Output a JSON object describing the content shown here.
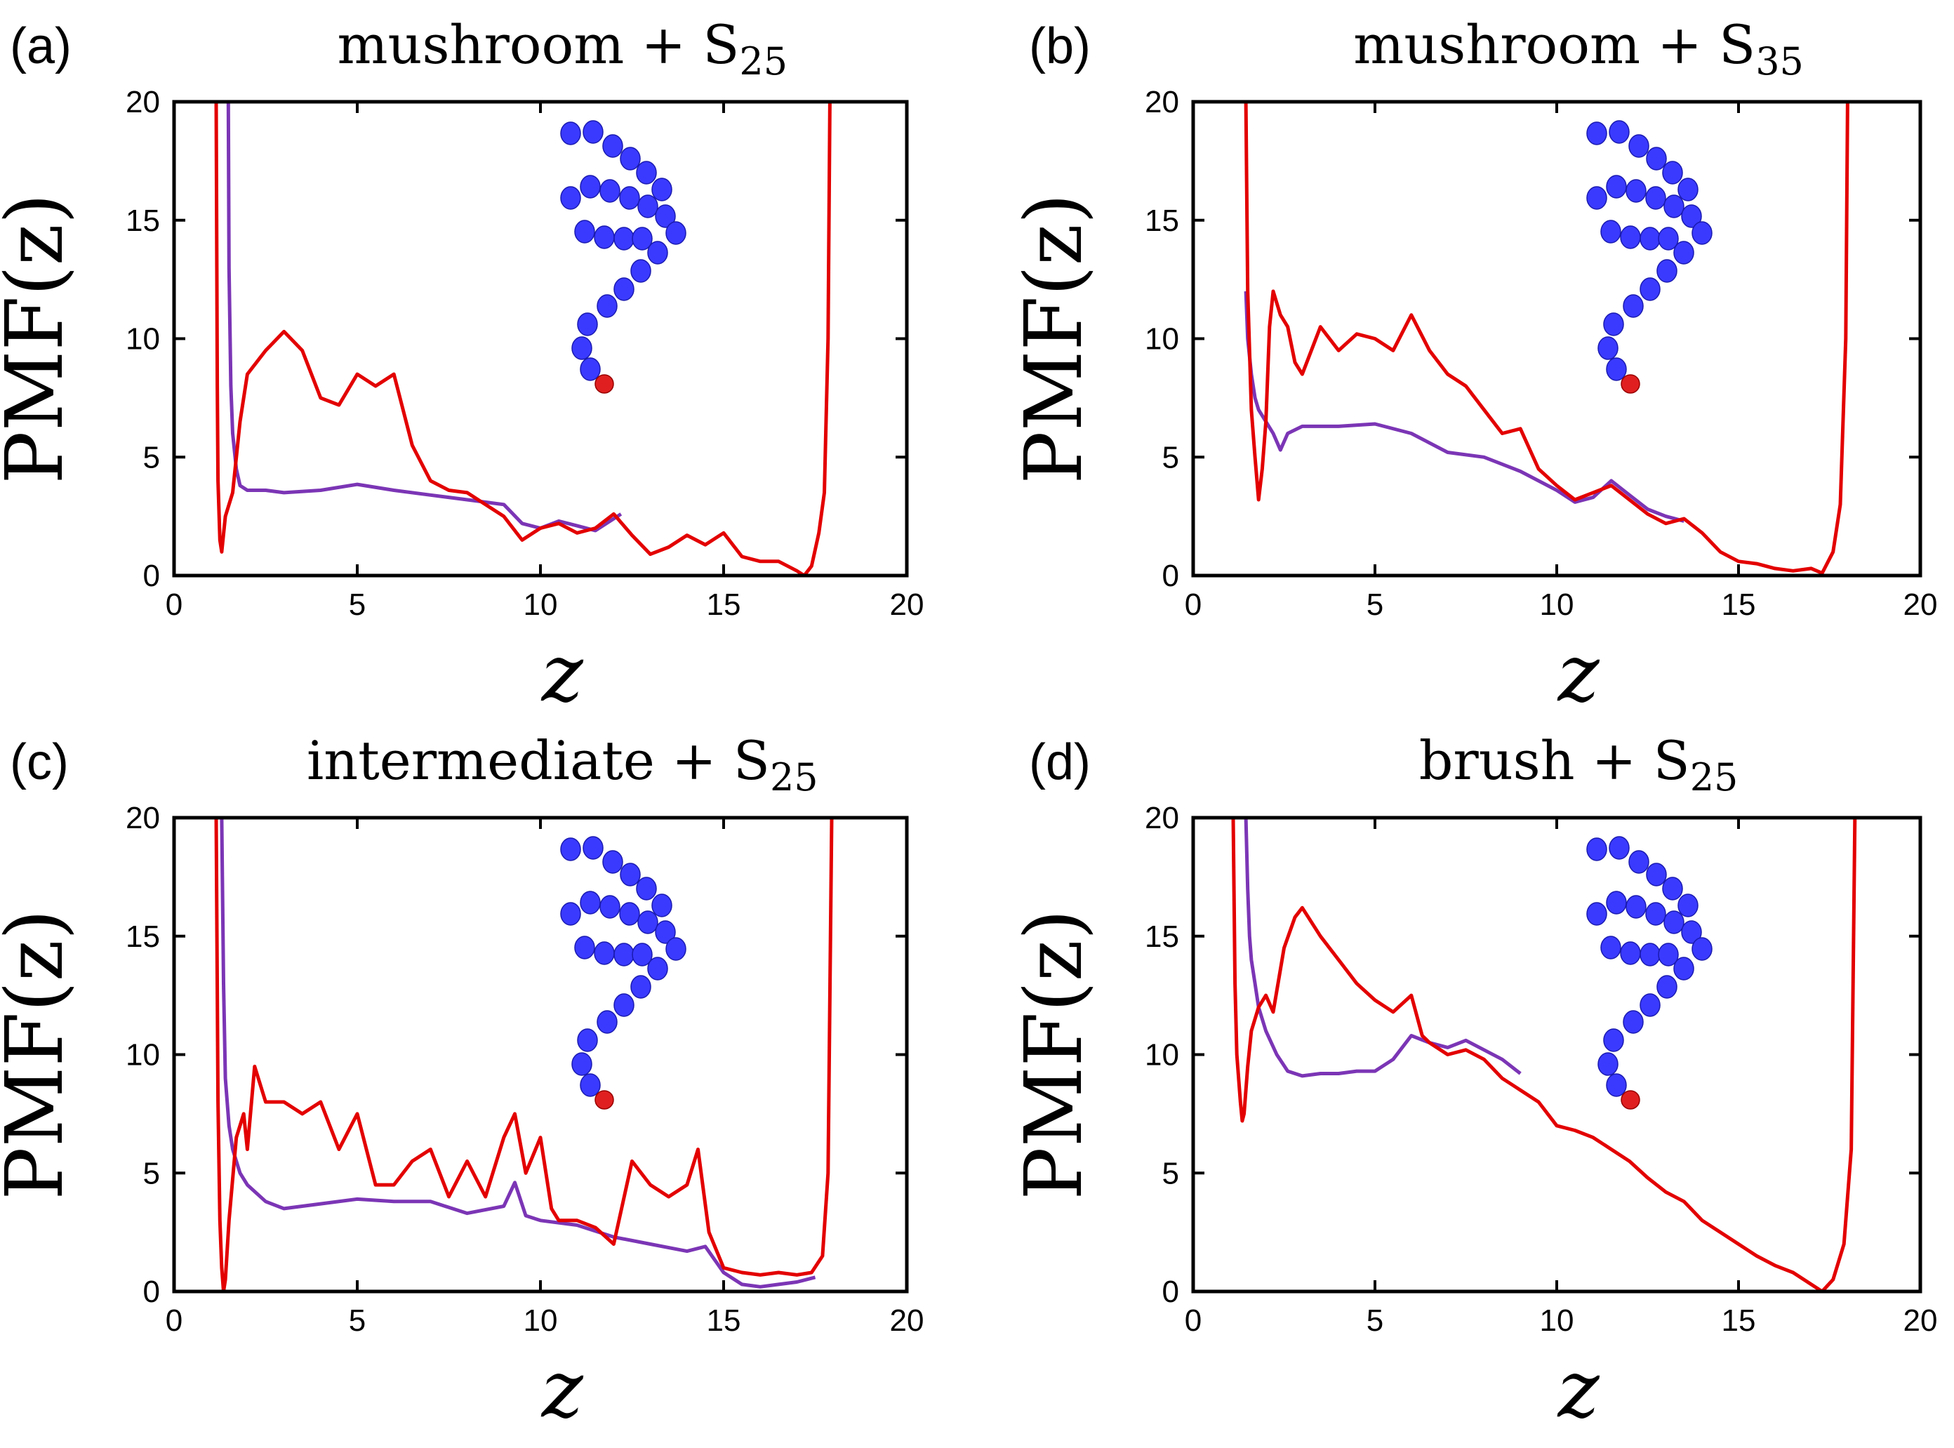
{
  "chart_data": [
    {
      "type": "line",
      "panel_label": "(a)",
      "title_main": "mushroom + S",
      "title_sub": "25",
      "xlabel": "z",
      "ylabel": "PMF(z)",
      "xlim": [
        0,
        20
      ],
      "ylim": [
        0,
        20
      ],
      "xticks": [
        "0",
        "5",
        "10",
        "15",
        "20"
      ],
      "yticks": [
        "0",
        "5",
        "10",
        "15",
        "20"
      ],
      "colors": {
        "purple": "#7b35b5",
        "red": "#e30000",
        "bead": "#3a3aff",
        "tip": "#e02020"
      },
      "series": [
        {
          "name": "purple",
          "x": [
            1.48,
            1.5,
            1.55,
            1.6,
            1.7,
            1.8,
            2.0,
            2.5,
            3.0,
            4.0,
            5.0,
            6.0,
            7.0,
            8.0,
            9.0,
            9.5,
            10.0,
            10.5,
            11.0,
            11.5,
            12.0,
            12.2
          ],
          "y": [
            20,
            13,
            8,
            6,
            4.5,
            3.8,
            3.6,
            3.6,
            3.5,
            3.6,
            3.85,
            3.6,
            3.4,
            3.2,
            3.0,
            2.2,
            2.0,
            2.3,
            2.1,
            1.9,
            2.4,
            2.6
          ]
        },
        {
          "name": "red",
          "x": [
            1.15,
            1.18,
            1.2,
            1.25,
            1.3,
            1.4,
            1.6,
            1.8,
            2.0,
            2.5,
            3.0,
            3.5,
            4.0,
            4.5,
            5.0,
            5.5,
            6.0,
            6.5,
            7.0,
            7.5,
            8.0,
            8.5,
            9.0,
            9.5,
            10.0,
            10.5,
            11.0,
            11.5,
            12.0,
            12.5,
            13.0,
            13.5,
            14.0,
            14.5,
            15.0,
            15.5,
            16.0,
            16.5,
            17.0,
            17.2,
            17.4,
            17.6,
            17.75,
            17.85,
            17.9
          ],
          "y": [
            20,
            8,
            4,
            1.5,
            1.0,
            2.5,
            3.5,
            6.5,
            8.5,
            9.5,
            10.3,
            9.5,
            7.5,
            7.2,
            8.5,
            8.0,
            8.5,
            5.5,
            4.0,
            3.6,
            3.5,
            3.0,
            2.5,
            1.5,
            2.0,
            2.2,
            1.8,
            2.0,
            2.6,
            1.7,
            0.9,
            1.2,
            1.7,
            1.3,
            1.8,
            0.8,
            0.6,
            0.6,
            0.2,
            0.0,
            0.4,
            1.8,
            3.5,
            10,
            20
          ]
        }
      ]
    },
    {
      "type": "line",
      "panel_label": "(b)",
      "title_main": "mushroom + S",
      "title_sub": "35",
      "xlabel": "z",
      "ylabel": "PMF(z)",
      "xlim": [
        0,
        20
      ],
      "ylim": [
        0,
        20
      ],
      "xticks": [
        "0",
        "5",
        "10",
        "15",
        "20"
      ],
      "yticks": [
        "0",
        "5",
        "10",
        "15",
        "20"
      ],
      "colors": {
        "purple": "#7b35b5",
        "red": "#e30000",
        "bead": "#3a3aff",
        "tip": "#e02020"
      },
      "series": [
        {
          "name": "purple",
          "x": [
            1.45,
            1.5,
            1.6,
            1.7,
            1.8,
            2.0,
            2.2,
            2.4,
            2.6,
            3.0,
            4.0,
            5.0,
            6.0,
            7.0,
            8.0,
            9.0,
            10.0,
            10.5,
            11.0,
            11.5,
            12.0,
            12.5,
            13.0,
            13.5
          ],
          "y": [
            12,
            10,
            8.5,
            7.5,
            7.0,
            6.5,
            6.0,
            5.3,
            6.0,
            6.3,
            6.3,
            6.4,
            6.0,
            5.2,
            5.0,
            4.4,
            3.6,
            3.1,
            3.3,
            4.0,
            3.4,
            2.8,
            2.5,
            2.3
          ]
        },
        {
          "name": "red",
          "x": [
            1.45,
            1.5,
            1.6,
            1.7,
            1.8,
            1.9,
            2.0,
            2.1,
            2.2,
            2.4,
            2.6,
            2.8,
            3.0,
            3.5,
            4.0,
            4.5,
            5.0,
            5.5,
            6.0,
            6.5,
            7.0,
            7.5,
            8.0,
            8.5,
            9.0,
            9.5,
            10.0,
            10.5,
            11.0,
            11.5,
            12.0,
            12.5,
            13.0,
            13.5,
            14.0,
            14.5,
            15.0,
            15.5,
            16.0,
            16.5,
            17.0,
            17.3,
            17.6,
            17.8,
            17.95,
            18.0
          ],
          "y": [
            20,
            12,
            7,
            5,
            3.2,
            4.5,
            6.5,
            10.5,
            12.0,
            11.0,
            10.5,
            9.0,
            8.5,
            10.5,
            9.5,
            10.2,
            10.0,
            9.5,
            11.0,
            9.5,
            8.5,
            8.0,
            7.0,
            6.0,
            6.2,
            4.5,
            3.8,
            3.2,
            3.5,
            3.8,
            3.2,
            2.6,
            2.2,
            2.4,
            1.8,
            1.0,
            0.6,
            0.5,
            0.3,
            0.2,
            0.3,
            0.1,
            1.0,
            3.0,
            10,
            20
          ]
        }
      ]
    },
    {
      "type": "line",
      "panel_label": "(c)",
      "title_main": "intermediate + S",
      "title_sub": "25",
      "xlabel": "z",
      "ylabel": "PMF(z)",
      "xlim": [
        0,
        20
      ],
      "ylim": [
        0,
        20
      ],
      "xticks": [
        "0",
        "5",
        "10",
        "15",
        "20"
      ],
      "yticks": [
        "0",
        "5",
        "10",
        "15",
        "20"
      ],
      "colors": {
        "purple": "#7b35b5",
        "red": "#e30000",
        "bead": "#3a3aff",
        "tip": "#e02020"
      },
      "series": [
        {
          "name": "purple",
          "x": [
            1.3,
            1.35,
            1.4,
            1.5,
            1.6,
            1.8,
            2.0,
            2.5,
            3.0,
            4.0,
            5.0,
            6.0,
            7.0,
            8.0,
            9.0,
            9.3,
            9.6,
            10.0,
            11.0,
            12.0,
            13.0,
            14.0,
            14.5,
            15.0,
            15.5,
            16.0,
            16.5,
            17.0,
            17.5
          ],
          "y": [
            20,
            13,
            9,
            7,
            6,
            5.0,
            4.5,
            3.8,
            3.5,
            3.7,
            3.9,
            3.8,
            3.8,
            3.3,
            3.6,
            4.6,
            3.2,
            3.0,
            2.8,
            2.3,
            2.0,
            1.7,
            1.9,
            0.8,
            0.3,
            0.2,
            0.3,
            0.4,
            0.6
          ]
        },
        {
          "name": "red",
          "x": [
            1.15,
            1.2,
            1.25,
            1.3,
            1.35,
            1.4,
            1.5,
            1.7,
            1.9,
            2.0,
            2.2,
            2.5,
            3.0,
            3.5,
            4.0,
            4.5,
            5.0,
            5.5,
            6.0,
            6.5,
            7.0,
            7.5,
            8.0,
            8.5,
            9.0,
            9.3,
            9.6,
            10.0,
            10.3,
            10.5,
            11.0,
            11.5,
            12.0,
            12.5,
            13.0,
            13.5,
            14.0,
            14.3,
            14.6,
            15.0,
            15.5,
            16.0,
            16.5,
            17.0,
            17.4,
            17.7,
            17.85,
            17.95
          ],
          "y": [
            20,
            8,
            3,
            1.0,
            0.0,
            0.5,
            3.0,
            6.5,
            7.5,
            6.0,
            9.5,
            8.0,
            8.0,
            7.5,
            8.0,
            6.0,
            7.5,
            4.5,
            4.5,
            5.5,
            6.0,
            4.0,
            5.5,
            4.0,
            6.5,
            7.5,
            5.0,
            6.5,
            3.5,
            3.0,
            3.0,
            2.7,
            2.0,
            5.5,
            4.5,
            4.0,
            4.5,
            6.0,
            2.5,
            1.0,
            0.8,
            0.7,
            0.8,
            0.7,
            0.8,
            1.5,
            5.0,
            20
          ]
        }
      ]
    },
    {
      "type": "line",
      "panel_label": "(d)",
      "title_main": "brush + S",
      "title_sub": "25",
      "xlabel": "z",
      "ylabel": "PMF(z)",
      "xlim": [
        0,
        20
      ],
      "ylim": [
        0,
        20
      ],
      "xticks": [
        "0",
        "5",
        "10",
        "15",
        "20"
      ],
      "yticks": [
        "0",
        "5",
        "10",
        "15",
        "20"
      ],
      "colors": {
        "purple": "#7b35b5",
        "red": "#e30000",
        "bead": "#3a3aff",
        "tip": "#e02020"
      },
      "series": [
        {
          "name": "purple",
          "x": [
            1.45,
            1.5,
            1.55,
            1.6,
            1.7,
            1.8,
            2.0,
            2.3,
            2.6,
            3.0,
            3.5,
            4.0,
            4.5,
            5.0,
            5.5,
            6.0,
            6.5,
            7.0,
            7.5,
            8.0,
            8.5,
            9.0
          ],
          "y": [
            20,
            17,
            15,
            14,
            13,
            12,
            11,
            10,
            9.3,
            9.1,
            9.2,
            9.2,
            9.3,
            9.3,
            9.8,
            10.8,
            10.5,
            10.3,
            10.6,
            10.2,
            9.8,
            9.2
          ]
        },
        {
          "name": "red",
          "x": [
            1.1,
            1.15,
            1.2,
            1.3,
            1.35,
            1.4,
            1.5,
            1.6,
            1.8,
            2.0,
            2.2,
            2.5,
            2.8,
            3.0,
            3.5,
            4.0,
            4.5,
            5.0,
            5.5,
            6.0,
            6.3,
            6.5,
            7.0,
            7.5,
            8.0,
            8.5,
            9.0,
            9.5,
            10.0,
            10.5,
            11.0,
            11.5,
            12.0,
            12.5,
            13.0,
            13.5,
            14.0,
            14.5,
            15.0,
            15.5,
            16.0,
            16.5,
            17.0,
            17.3,
            17.6,
            17.9,
            18.1,
            18.2
          ],
          "y": [
            20,
            13,
            10,
            8,
            7.2,
            7.5,
            9.5,
            11.0,
            12.0,
            12.5,
            11.8,
            14.5,
            15.8,
            16.2,
            15.0,
            14.0,
            13.0,
            12.3,
            11.8,
            12.5,
            10.8,
            10.5,
            10.0,
            10.2,
            9.8,
            9.0,
            8.5,
            8.0,
            7.0,
            6.8,
            6.5,
            6.0,
            5.5,
            4.8,
            4.2,
            3.8,
            3.0,
            2.5,
            2.0,
            1.5,
            1.1,
            0.8,
            0.3,
            0.0,
            0.5,
            2.0,
            6.0,
            20
          ]
        }
      ]
    }
  ]
}
